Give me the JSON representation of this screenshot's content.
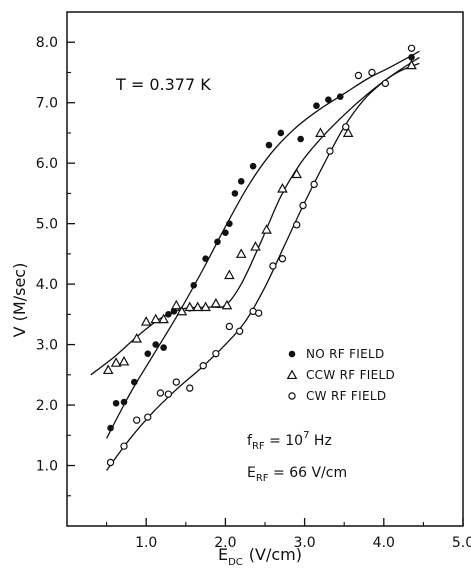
{
  "chart_data": {
    "type": "scatter",
    "title": "",
    "xlabel": "E",
    "xlabel_sub": "DC",
    "xlabel_unit": "(V/cm)",
    "ylabel": "V (M/sec)",
    "xlim": [
      0,
      5.0
    ],
    "ylim": [
      0,
      8.5
    ],
    "xticks": [
      1.0,
      2.0,
      3.0,
      4.0,
      5.0
    ],
    "xtick_labels": [
      "1.0",
      "2.0",
      "3.0",
      "4.0",
      "5.0"
    ],
    "yticks": [
      1.0,
      2.0,
      3.0,
      4.0,
      5.0,
      6.0,
      7.0,
      8.0
    ],
    "ytick_labels": [
      "1.0",
      "2.0",
      "3.0",
      "4.0",
      "5.0",
      "6.0",
      "7.0",
      "8.0"
    ],
    "grid": false,
    "legend_position": "center-right",
    "annotation": "T = 0.377 K",
    "params": {
      "f_main": "f",
      "f_sub": "RF",
      "f_value": " = 10",
      "f_exp": "7",
      "f_unit": " Hz",
      "e_main": "E",
      "e_sub": "RF",
      "e_value": " = 66 V/cm"
    },
    "series": [
      {
        "name": "NO RF FIELD",
        "marker": "filled-circle",
        "points": [
          [
            0.55,
            1.62
          ],
          [
            0.62,
            2.03
          ],
          [
            0.72,
            2.05
          ],
          [
            0.85,
            2.38
          ],
          [
            1.02,
            2.85
          ],
          [
            1.12,
            3.0
          ],
          [
            1.22,
            2.95
          ],
          [
            1.28,
            3.5
          ],
          [
            1.35,
            3.55
          ],
          [
            1.55,
            3.6
          ],
          [
            1.6,
            3.98
          ],
          [
            1.75,
            4.42
          ],
          [
            1.9,
            4.7
          ],
          [
            2.0,
            4.85
          ],
          [
            2.05,
            5.0
          ],
          [
            2.12,
            5.5
          ],
          [
            2.2,
            5.7
          ],
          [
            2.35,
            5.95
          ],
          [
            2.55,
            6.3
          ],
          [
            2.7,
            6.5
          ],
          [
            2.95,
            6.4
          ],
          [
            3.15,
            6.95
          ],
          [
            3.3,
            7.05
          ],
          [
            3.45,
            7.1
          ],
          [
            4.35,
            7.75
          ]
        ],
        "fit": [
          [
            0.5,
            1.45
          ],
          [
            0.8,
            2.2
          ],
          [
            1.1,
            2.85
          ],
          [
            1.4,
            3.5
          ],
          [
            1.7,
            4.2
          ],
          [
            2.0,
            4.95
          ],
          [
            2.3,
            5.65
          ],
          [
            2.6,
            6.2
          ],
          [
            2.9,
            6.6
          ],
          [
            3.2,
            6.9
          ],
          [
            3.5,
            7.15
          ],
          [
            3.8,
            7.4
          ],
          [
            4.1,
            7.6
          ],
          [
            4.45,
            7.85
          ]
        ]
      },
      {
        "name": "CCW RF FIELD",
        "marker": "open-triangle",
        "points": [
          [
            0.52,
            2.58
          ],
          [
            0.62,
            2.7
          ],
          [
            0.72,
            2.72
          ],
          [
            0.88,
            3.1
          ],
          [
            1.0,
            3.38
          ],
          [
            1.12,
            3.42
          ],
          [
            1.22,
            3.42
          ],
          [
            1.38,
            3.65
          ],
          [
            1.45,
            3.55
          ],
          [
            1.55,
            3.62
          ],
          [
            1.65,
            3.62
          ],
          [
            1.75,
            3.62
          ],
          [
            1.88,
            3.68
          ],
          [
            2.02,
            3.65
          ],
          [
            2.05,
            4.15
          ],
          [
            2.2,
            4.5
          ],
          [
            2.38,
            4.62
          ],
          [
            2.52,
            4.9
          ],
          [
            2.72,
            5.58
          ],
          [
            2.9,
            5.82
          ],
          [
            3.2,
            6.5
          ],
          [
            3.55,
            6.5
          ],
          [
            4.35,
            7.62
          ]
        ],
        "fit": [
          [
            0.3,
            2.5
          ],
          [
            0.6,
            2.8
          ],
          [
            0.9,
            3.15
          ],
          [
            1.2,
            3.45
          ],
          [
            1.5,
            3.6
          ],
          [
            1.8,
            3.62
          ],
          [
            2.0,
            3.65
          ],
          [
            2.2,
            4.0
          ],
          [
            2.45,
            4.7
          ],
          [
            2.7,
            5.45
          ],
          [
            2.95,
            6.0
          ],
          [
            3.2,
            6.4
          ],
          [
            3.5,
            6.8
          ],
          [
            3.8,
            7.15
          ],
          [
            4.1,
            7.45
          ],
          [
            4.45,
            7.75
          ]
        ]
      },
      {
        "name": "CW RF FIELD",
        "marker": "open-circle",
        "points": [
          [
            0.55,
            1.05
          ],
          [
            0.72,
            1.32
          ],
          [
            0.88,
            1.75
          ],
          [
            1.02,
            1.8
          ],
          [
            1.18,
            2.2
          ],
          [
            1.28,
            2.18
          ],
          [
            1.38,
            2.38
          ],
          [
            1.55,
            2.28
          ],
          [
            1.72,
            2.65
          ],
          [
            1.88,
            2.85
          ],
          [
            2.05,
            3.3
          ],
          [
            2.18,
            3.22
          ],
          [
            2.35,
            3.55
          ],
          [
            2.42,
            3.52
          ],
          [
            2.6,
            4.3
          ],
          [
            2.72,
            4.42
          ],
          [
            2.9,
            4.98
          ],
          [
            2.98,
            5.3
          ],
          [
            3.12,
            5.65
          ],
          [
            3.32,
            6.2
          ],
          [
            3.52,
            6.6
          ],
          [
            3.68,
            7.45
          ],
          [
            3.85,
            7.5
          ],
          [
            4.02,
            7.32
          ],
          [
            4.35,
            7.9
          ]
        ],
        "fit": [
          [
            0.5,
            0.92
          ],
          [
            0.8,
            1.45
          ],
          [
            1.1,
            1.9
          ],
          [
            1.4,
            2.28
          ],
          [
            1.7,
            2.62
          ],
          [
            2.0,
            3.0
          ],
          [
            2.25,
            3.38
          ],
          [
            2.5,
            3.95
          ],
          [
            2.75,
            4.65
          ],
          [
            3.0,
            5.35
          ],
          [
            3.25,
            6.0
          ],
          [
            3.5,
            6.6
          ],
          [
            3.75,
            7.05
          ],
          [
            4.0,
            7.35
          ],
          [
            4.2,
            7.52
          ],
          [
            4.45,
            7.65
          ]
        ]
      }
    ]
  }
}
